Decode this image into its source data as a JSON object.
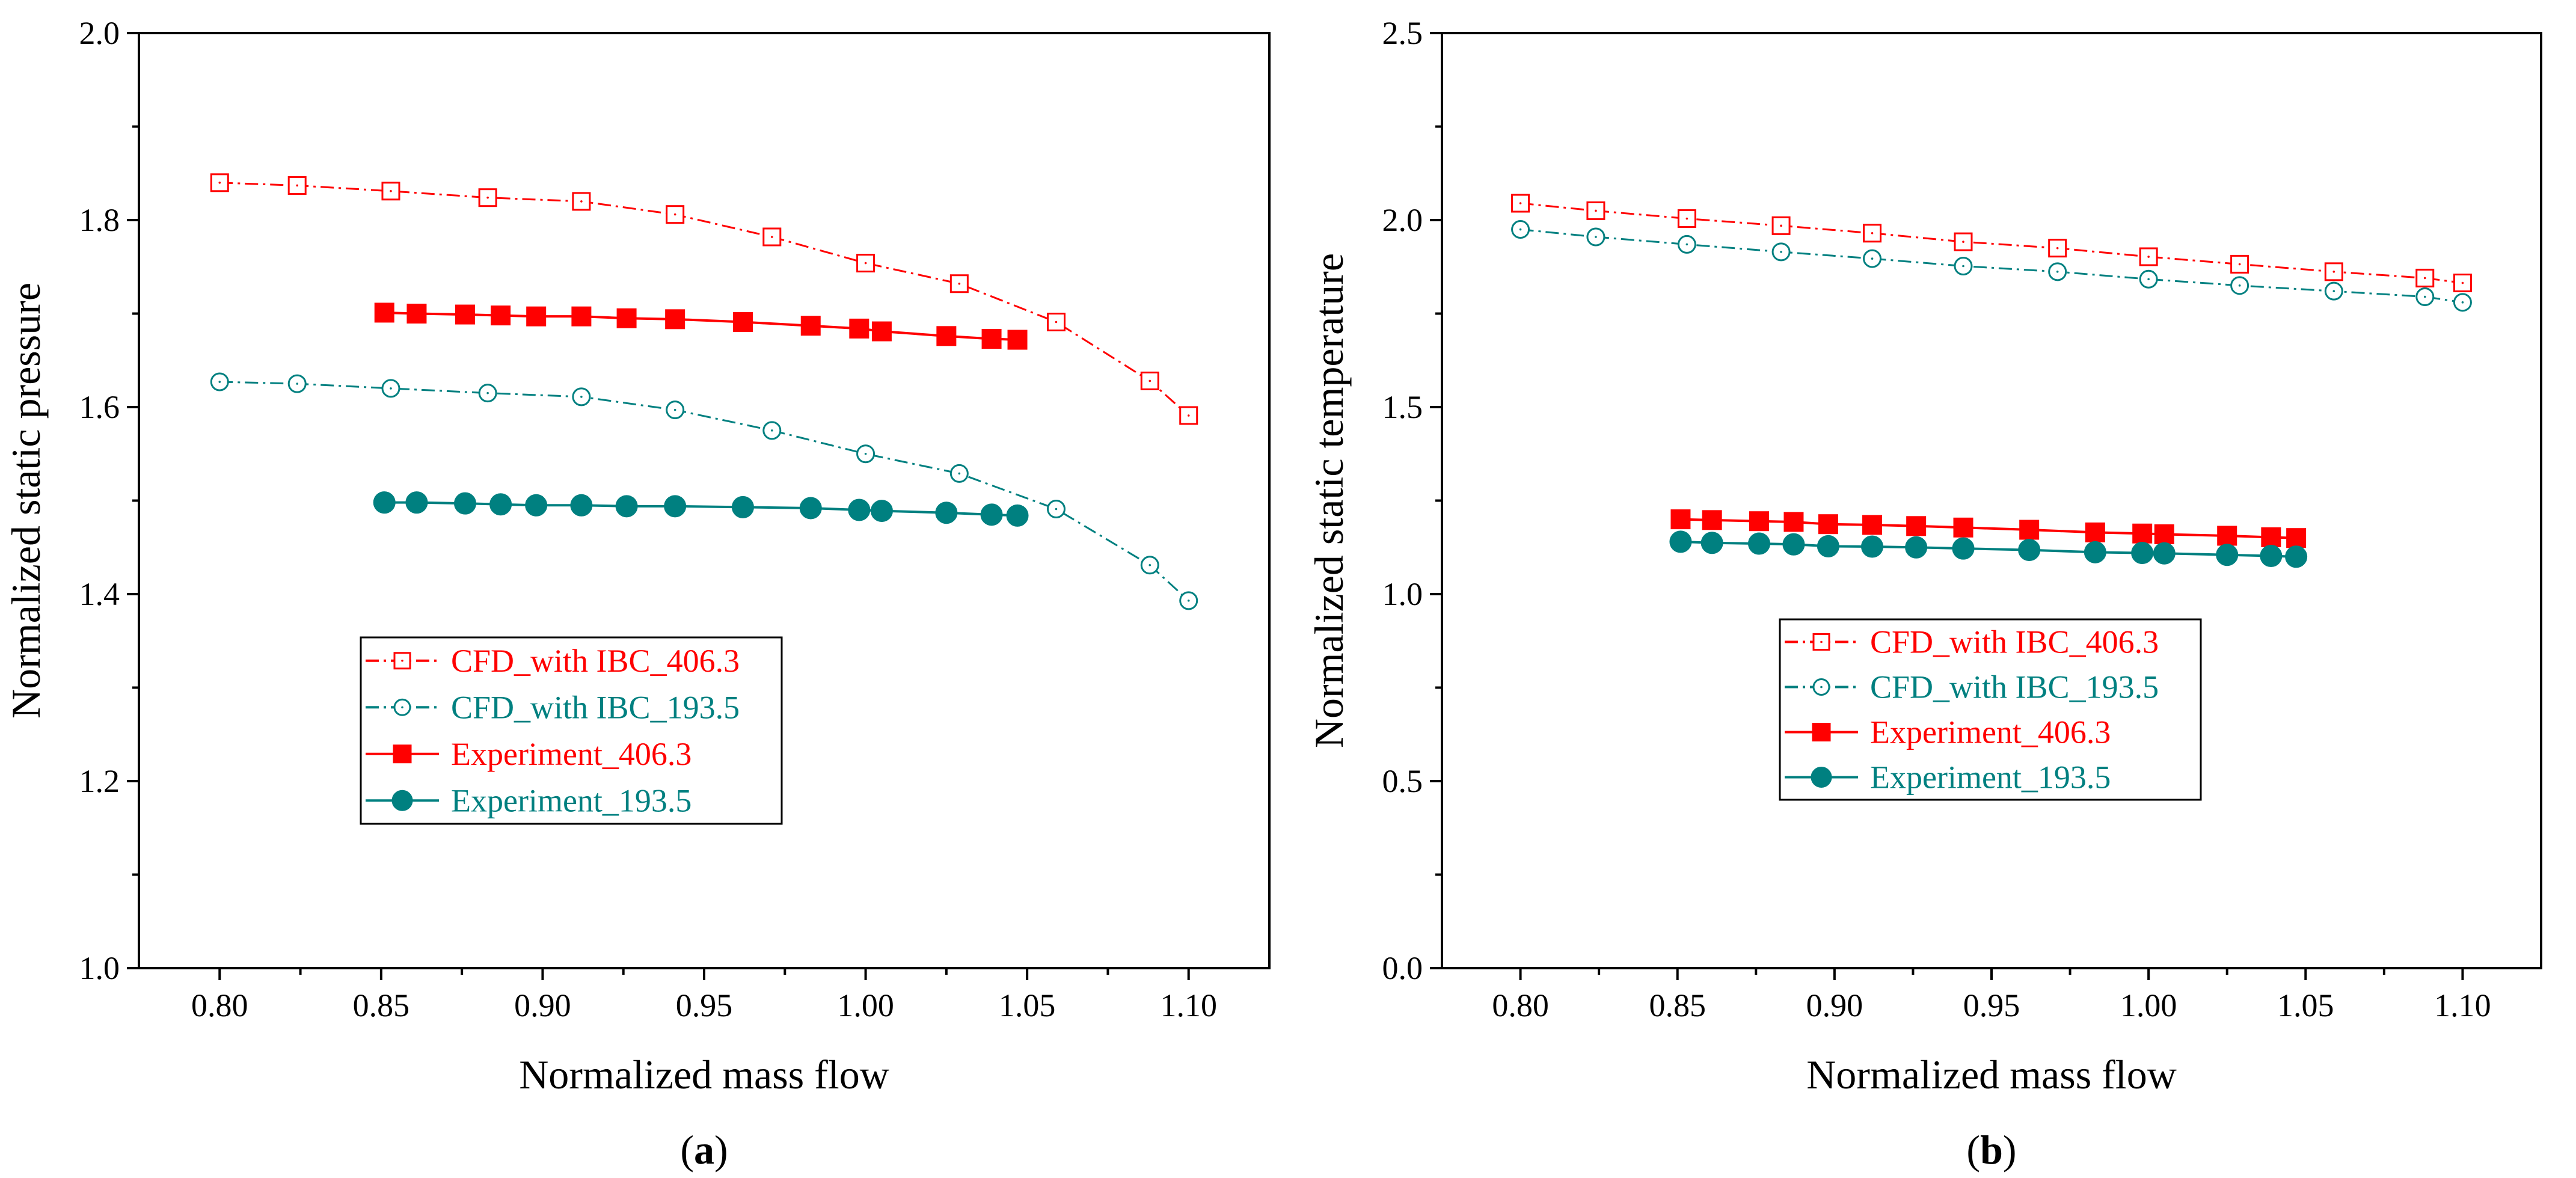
{
  "colors": {
    "red": "#ff0000",
    "teal": "#008080",
    "axis": "#000000"
  },
  "chart_data": [
    {
      "type": "line",
      "panel_label": "a",
      "xlabel": "Normalized mass flow",
      "ylabel": "Normalized static pressure",
      "xlim": [
        0.775,
        1.125
      ],
      "ylim": [
        1.0,
        2.0
      ],
      "xticks": [
        "0.80",
        "0.85",
        "0.90",
        "0.95",
        "1.00",
        "1.05",
        "1.10"
      ],
      "yticks": [
        "1.0",
        "1.2",
        "1.4",
        "1.6",
        "1.8",
        "2.0"
      ],
      "grid": false,
      "legend_position": "lower-center",
      "series": [
        {
          "name": "CFD_with IBC_406.3",
          "style": "dashdot-open-square",
          "color": "#ff0000",
          "x": [
            0.8,
            0.824,
            0.853,
            0.883,
            0.912,
            0.941,
            0.971,
            1.0,
            1.029,
            1.059,
            1.088,
            1.1
          ],
          "y": [
            1.84,
            1.837,
            1.831,
            1.824,
            1.82,
            1.806,
            1.782,
            1.754,
            1.732,
            1.691,
            1.628,
            1.591
          ]
        },
        {
          "name": "CFD_with IBC_193.5",
          "style": "dashdot-open-circle",
          "color": "#008080",
          "x": [
            0.8,
            0.824,
            0.853,
            0.883,
            0.912,
            0.941,
            0.971,
            1.0,
            1.029,
            1.059,
            1.088,
            1.1
          ],
          "y": [
            1.627,
            1.625,
            1.62,
            1.615,
            1.611,
            1.597,
            1.575,
            1.55,
            1.529,
            1.491,
            1.431,
            1.393
          ]
        },
        {
          "name": "Experiment_406.3",
          "style": "solid-filled-square",
          "color": "#ff0000",
          "x": [
            0.851,
            0.861,
            0.876,
            0.887,
            0.898,
            0.912,
            0.926,
            0.941,
            0.962,
            0.983,
            0.998,
            1.005,
            1.025,
            1.039,
            1.047
          ],
          "y": [
            1.701,
            1.7,
            1.699,
            1.698,
            1.697,
            1.697,
            1.695,
            1.694,
            1.691,
            1.687,
            1.684,
            1.681,
            1.676,
            1.673,
            1.672
          ]
        },
        {
          "name": "Experiment_193.5",
          "style": "solid-filled-circle",
          "color": "#008080",
          "x": [
            0.851,
            0.861,
            0.876,
            0.887,
            0.898,
            0.912,
            0.926,
            0.941,
            0.962,
            0.983,
            0.998,
            1.005,
            1.025,
            1.039,
            1.047
          ],
          "y": [
            1.498,
            1.498,
            1.497,
            1.496,
            1.495,
            1.495,
            1.494,
            1.494,
            1.493,
            1.492,
            1.49,
            1.489,
            1.487,
            1.485,
            1.484
          ]
        }
      ]
    },
    {
      "type": "line",
      "panel_label": "b",
      "xlabel": "Normalized mass flow",
      "ylabel": "Normalized static temperature",
      "xlim": [
        0.775,
        1.125
      ],
      "ylim": [
        0.0,
        2.5
      ],
      "xticks": [
        "0.80",
        "0.85",
        "0.90",
        "0.95",
        "1.00",
        "1.05",
        "1.10"
      ],
      "yticks": [
        "0.0",
        "0.5",
        "1.0",
        "1.5",
        "2.0",
        "2.5"
      ],
      "grid": false,
      "legend_position": "lower-center",
      "series": [
        {
          "name": "CFD_with IBC_406.3",
          "style": "dashdot-open-square",
          "color": "#ff0000",
          "x": [
            0.8,
            0.824,
            0.853,
            0.883,
            0.912,
            0.941,
            0.971,
            1.0,
            1.029,
            1.059,
            1.088,
            1.1
          ],
          "y": [
            2.045,
            2.025,
            2.004,
            1.985,
            1.965,
            1.942,
            1.925,
            1.902,
            1.882,
            1.862,
            1.845,
            1.832
          ]
        },
        {
          "name": "CFD_with IBC_193.5",
          "style": "dashdot-open-circle",
          "color": "#008080",
          "x": [
            0.8,
            0.824,
            0.853,
            0.883,
            0.912,
            0.941,
            0.971,
            1.0,
            1.029,
            1.059,
            1.088,
            1.1
          ],
          "y": [
            1.975,
            1.955,
            1.935,
            1.915,
            1.897,
            1.877,
            1.862,
            1.842,
            1.825,
            1.81,
            1.795,
            1.78
          ]
        },
        {
          "name": "Experiment_406.3",
          "style": "solid-filled-square",
          "color": "#ff0000",
          "x": [
            0.851,
            0.861,
            0.876,
            0.887,
            0.898,
            0.912,
            0.926,
            0.941,
            0.962,
            0.983,
            0.998,
            1.005,
            1.025,
            1.039,
            1.047
          ],
          "y": [
            1.2,
            1.198,
            1.195,
            1.193,
            1.187,
            1.185,
            1.182,
            1.178,
            1.172,
            1.165,
            1.162,
            1.16,
            1.156,
            1.152,
            1.15
          ]
        },
        {
          "name": "Experiment_193.5",
          "style": "solid-filled-circle",
          "color": "#008080",
          "x": [
            0.851,
            0.861,
            0.876,
            0.887,
            0.898,
            0.912,
            0.926,
            0.941,
            0.962,
            0.983,
            0.998,
            1.005,
            1.025,
            1.039,
            1.047
          ],
          "y": [
            1.14,
            1.137,
            1.135,
            1.133,
            1.128,
            1.127,
            1.125,
            1.122,
            1.118,
            1.112,
            1.11,
            1.109,
            1.105,
            1.102,
            1.1
          ]
        }
      ]
    }
  ]
}
